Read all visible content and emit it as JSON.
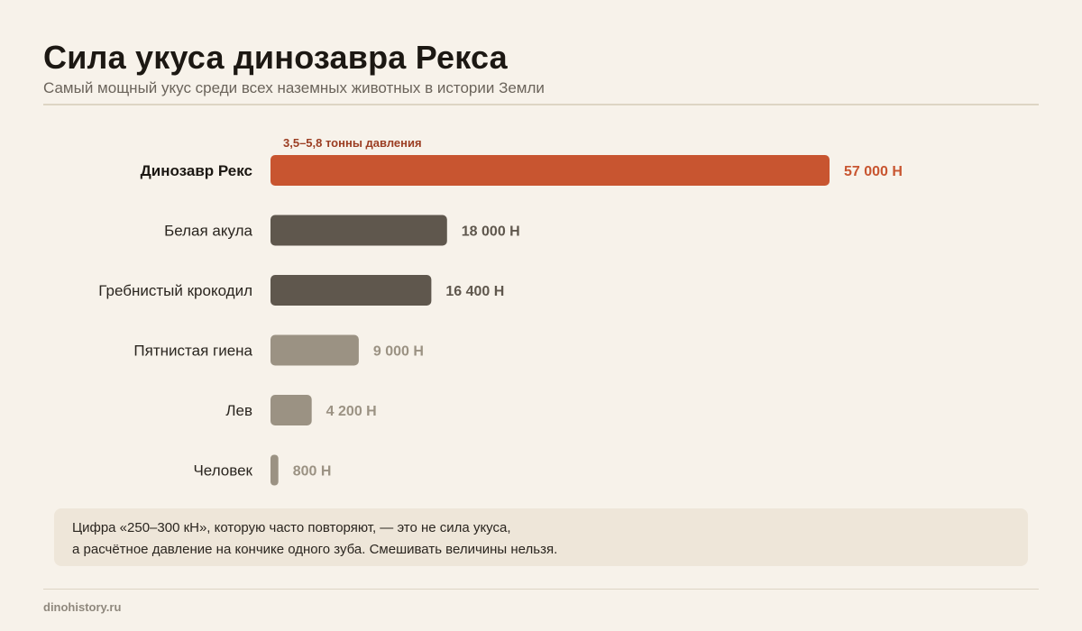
{
  "header": {
    "title": "Сила укуса динозавра Рекса",
    "subtitle": "Самый мощный укус среди всех наземных животных в истории Земли"
  },
  "chart_data": {
    "type": "bar",
    "orientation": "horizontal",
    "categories": [
      "Динозавр Рекс",
      "Белая акула",
      "Гребнистый крокодил",
      "Пятнистая гиена",
      "Лев",
      "Человек"
    ],
    "values": [
      57000,
      18000,
      16400,
      9000,
      4200,
      800
    ],
    "value_labels": [
      "57 000 Н",
      "18 000 Н",
      "16 400 Н",
      "9 000 Н",
      "4 200 Н",
      "800 Н"
    ],
    "annotation": {
      "category": "Динозавр Рекс",
      "text": "3,5–5,8 тонны давления"
    },
    "xlim": [
      0,
      57000
    ],
    "grid": false,
    "legend": "none",
    "colors": {
      "highlight": "#c85530",
      "dark": "#5f574d",
      "light": "#9b9283",
      "highlight_text": "#c85530",
      "dark_text": "#5f574d",
      "light_text": "#9b9283"
    },
    "bar_styles": [
      "highlight",
      "dark",
      "dark",
      "light",
      "light",
      "light"
    ]
  },
  "note": {
    "line1": "Цифра «250–300 кН», которую часто повторяют, — это не сила укуса,",
    "line2": "а расчётное давление на кончике одного зуба. Смешивать величины нельзя."
  },
  "footer": {
    "source": "dinohistory.ru"
  }
}
